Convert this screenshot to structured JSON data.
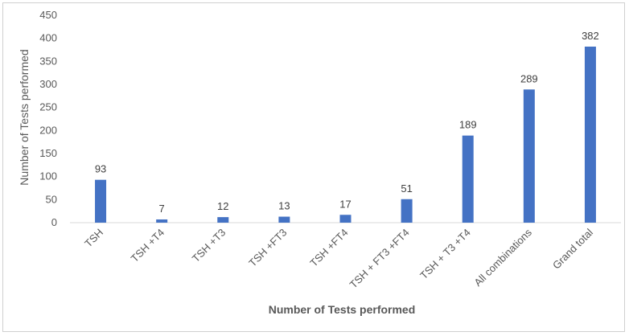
{
  "chart_data": {
    "type": "bar",
    "categories": [
      "TSH",
      "TSH +T4",
      "TSH +T3",
      "TSH +FT3",
      "TSH +FT4",
      "TSH + FT3 +FT4",
      "TSH + T3 +T4",
      "All combinations",
      "Grand total"
    ],
    "values": [
      93,
      7,
      12,
      13,
      17,
      51,
      189,
      289,
      382
    ],
    "data_labels": [
      "93",
      "7",
      "12",
      "13",
      "17",
      "51",
      "189",
      "289",
      "382"
    ],
    "xlabel": "Number of Tests performed",
    "ylabel": "Number of Tests performed",
    "ylim": [
      0,
      450
    ],
    "yticks": [
      "0",
      "50",
      "100",
      "150",
      "200",
      "250",
      "300",
      "350",
      "400",
      "450"
    ],
    "grid": false,
    "legend": "none",
    "colors": {
      "bar": "#4472c4",
      "axis": "#d9d9d9"
    }
  }
}
